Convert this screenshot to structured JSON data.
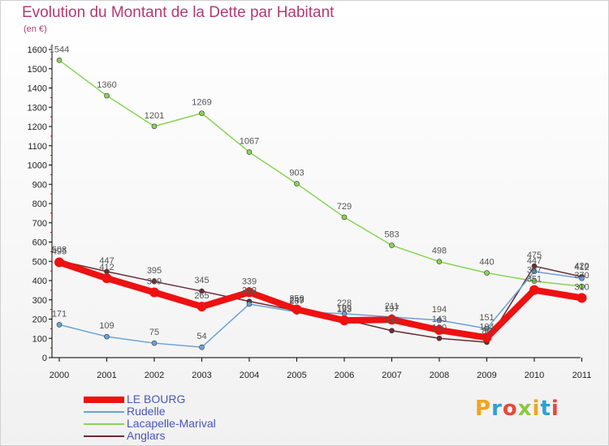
{
  "title": "Evolution du Montant de la Dette par Habitant",
  "subtitle": "(en €)",
  "logo_text": "Proxiti",
  "chart_data": {
    "type": "line",
    "categories": [
      "2000",
      "2001",
      "2002",
      "2003",
      "2004",
      "2005",
      "2006",
      "2007",
      "2008",
      "2009",
      "2010",
      "2011"
    ],
    "ylim": [
      0,
      1600
    ],
    "yticks": [
      0,
      100,
      200,
      300,
      400,
      500,
      600,
      700,
      800,
      900,
      1000,
      1100,
      1200,
      1300,
      1400,
      1500,
      1600
    ],
    "grid": false,
    "legend_position": "bottom-left",
    "series": [
      {
        "name": "LE BOURG",
        "color": "#ee1111",
        "values": [
          495,
          412,
          339,
          265,
          339,
          250,
          193,
          197,
          143,
          104,
          351,
          310
        ]
      },
      {
        "name": "Rudelle",
        "color": "#6aa2d6",
        "values": [
          171,
          109,
          75,
          54,
          278,
          237,
          228,
          211,
          194,
          151,
          447,
          412
        ]
      },
      {
        "name": "Lacapelle-Marival",
        "color": "#88d455",
        "values": [
          1544,
          1360,
          1201,
          1269,
          1067,
          903,
          729,
          583,
          498,
          440,
          397,
          370
        ]
      },
      {
        "name": "Anglars",
        "color": "#6b2b33",
        "values": [
          503,
          447,
          395,
          345,
          292,
          243,
          199,
          140,
          100,
          80,
          475,
          420
        ]
      }
    ]
  }
}
